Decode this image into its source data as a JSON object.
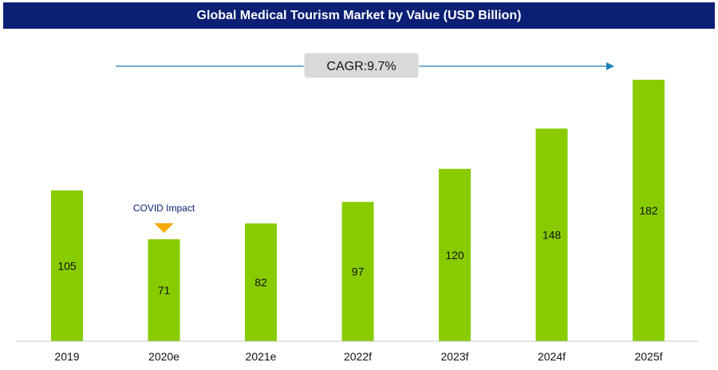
{
  "chart_data": {
    "type": "bar",
    "title": "Global Medical Tourism Market by Value (USD Billion)",
    "categories": [
      "2019",
      "2020e",
      "2021e",
      "2022f",
      "2023f",
      "2024f",
      "2025f"
    ],
    "values": [
      105,
      71,
      82,
      97,
      120,
      148,
      182
    ],
    "ylim": [
      0,
      190
    ],
    "grid": false,
    "bar_color": "#88cc00",
    "annotations": {
      "cagr_label": "CAGR:9.7%",
      "covid_label": "COVID Impact",
      "covid_category": "2020e",
      "marker_color": "#f5a800",
      "arrow_color": "#1f7fb8"
    }
  }
}
